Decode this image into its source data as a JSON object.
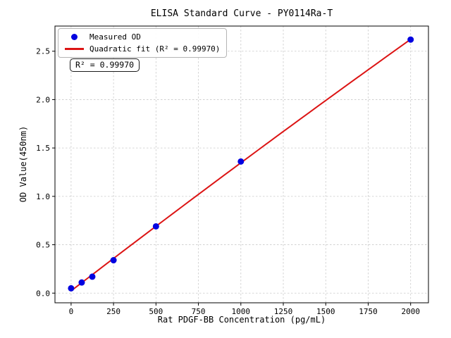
{
  "figure": {
    "background": "#ffffff"
  },
  "chart_data": {
    "type": "scatter",
    "title": "ELISA Standard Curve - PY0114Ra-T",
    "xlabel": "Rat PDGF-BB Concentration (pg/mL)",
    "ylabel": "OD Value(450nm)",
    "xlim": [
      -95,
      2105
    ],
    "ylim": [
      -0.1,
      2.76
    ],
    "xticks": [
      0,
      250,
      500,
      750,
      1000,
      1250,
      1500,
      1750,
      2000
    ],
    "xtick_labels": [
      "0",
      "250",
      "500",
      "750",
      "1000",
      "1250",
      "1500",
      "1750",
      "2000"
    ],
    "yticks": [
      0,
      0.5,
      1,
      1.5,
      2,
      2.5
    ],
    "ytick_labels": [
      "0.0",
      "0.5",
      "1.0",
      "1.5",
      "2.0",
      "2.5"
    ],
    "grid": true,
    "grid_color": "#c9c9c9",
    "axis_color": "#000000",
    "legend_position": "upper-left",
    "series": [
      {
        "name": "Measured OD",
        "type": "scatter",
        "color": "#0202e0",
        "x": [
          0,
          62.5,
          125,
          250,
          500,
          1000,
          2000
        ],
        "y": [
          0.05,
          0.11,
          0.17,
          0.34,
          0.69,
          1.36,
          2.62
        ]
      },
      {
        "name": "Quadratic fit (R² = 0.99970)",
        "type": "quadratic-fit-line",
        "color": "#dc1414",
        "r_squared": "0.99970",
        "x_range": [
          0,
          2000
        ]
      }
    ],
    "annotation": {
      "text": "R² = 0.99970"
    }
  }
}
